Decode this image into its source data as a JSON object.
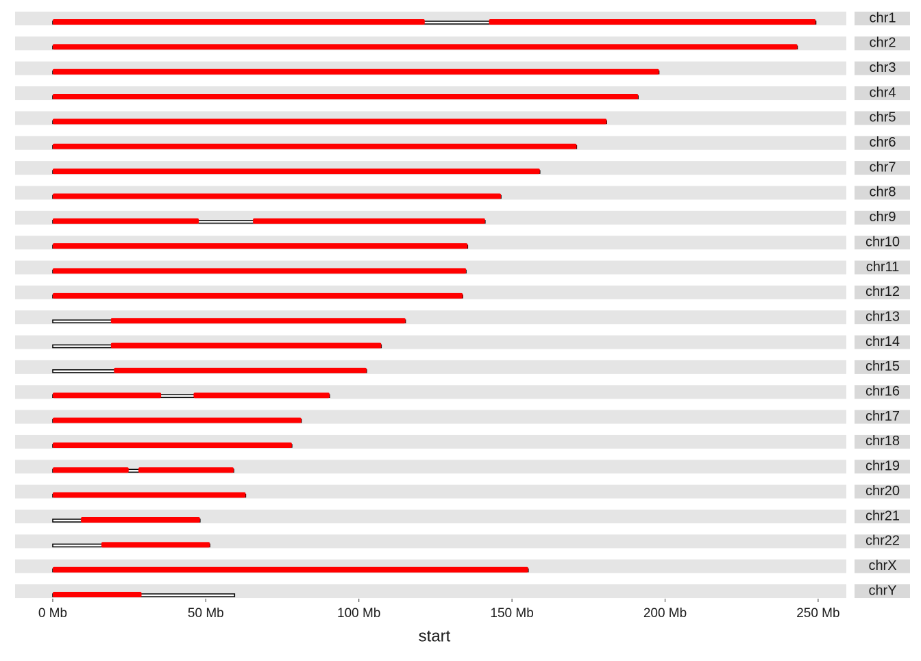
{
  "chart_data": {
    "type": "karyogram",
    "x_label": "start",
    "xlim": [
      -12.3,
      259.2
    ],
    "xticks": [
      {
        "value": 0,
        "label": "0 Mb"
      },
      {
        "value": 50,
        "label": "50 Mb"
      },
      {
        "value": 100,
        "label": "100 Mb"
      },
      {
        "value": 150,
        "label": "150 Mb"
      },
      {
        "value": 200,
        "label": "200 Mb"
      },
      {
        "value": 250,
        "label": "250 Mb"
      }
    ],
    "point_color": "#ff0000",
    "chromosomes": [
      {
        "name": "chr1",
        "length": 249.25,
        "regions": [
          [
            0,
            121.5
          ],
          [
            142.5,
            249.2
          ]
        ]
      },
      {
        "name": "chr2",
        "length": 243.2,
        "regions": [
          [
            0,
            243.2
          ]
        ]
      },
      {
        "name": "chr3",
        "length": 198.0,
        "regions": [
          [
            0,
            198.0
          ]
        ]
      },
      {
        "name": "chr4",
        "length": 191.2,
        "regions": [
          [
            0,
            191.2
          ]
        ]
      },
      {
        "name": "chr5",
        "length": 180.9,
        "regions": [
          [
            0,
            180.9
          ]
        ]
      },
      {
        "name": "chr6",
        "length": 171.1,
        "regions": [
          [
            0,
            171.1
          ]
        ]
      },
      {
        "name": "chr7",
        "length": 159.1,
        "regions": [
          [
            0,
            159.1
          ]
        ]
      },
      {
        "name": "chr8",
        "length": 146.4,
        "regions": [
          [
            0,
            146.4
          ]
        ]
      },
      {
        "name": "chr9",
        "length": 141.2,
        "regions": [
          [
            0,
            47.7
          ],
          [
            65.4,
            141.2
          ]
        ]
      },
      {
        "name": "chr10",
        "length": 135.5,
        "regions": [
          [
            0,
            135.5
          ]
        ]
      },
      {
        "name": "chr11",
        "length": 135.0,
        "regions": [
          [
            0,
            135.0
          ]
        ]
      },
      {
        "name": "chr12",
        "length": 133.9,
        "regions": [
          [
            0,
            133.9
          ]
        ]
      },
      {
        "name": "chr13",
        "length": 115.2,
        "regions": [
          [
            19.0,
            115.2
          ]
        ]
      },
      {
        "name": "chr14",
        "length": 107.3,
        "regions": [
          [
            19.0,
            107.3
          ]
        ]
      },
      {
        "name": "chr15",
        "length": 102.5,
        "regions": [
          [
            20.0,
            102.5
          ]
        ]
      },
      {
        "name": "chr16",
        "length": 90.4,
        "regions": [
          [
            0,
            35.4
          ],
          [
            46.0,
            90.4
          ]
        ]
      },
      {
        "name": "chr17",
        "length": 81.2,
        "regions": [
          [
            0,
            81.2
          ]
        ]
      },
      {
        "name": "chr18",
        "length": 78.1,
        "regions": [
          [
            0,
            78.1
          ]
        ]
      },
      {
        "name": "chr19",
        "length": 59.1,
        "regions": [
          [
            0,
            24.8
          ],
          [
            28.0,
            59.1
          ]
        ]
      },
      {
        "name": "chr20",
        "length": 63.0,
        "regions": [
          [
            0,
            63.0
          ]
        ]
      },
      {
        "name": "chr21",
        "length": 48.1,
        "regions": [
          [
            9.2,
            48.1
          ]
        ]
      },
      {
        "name": "chr22",
        "length": 51.3,
        "regions": [
          [
            15.9,
            51.3
          ]
        ]
      },
      {
        "name": "chrX",
        "length": 155.3,
        "regions": [
          [
            0,
            155.3
          ]
        ]
      },
      {
        "name": "chrY",
        "length": 59.4,
        "regions": [
          [
            0,
            29.0
          ]
        ]
      }
    ]
  }
}
